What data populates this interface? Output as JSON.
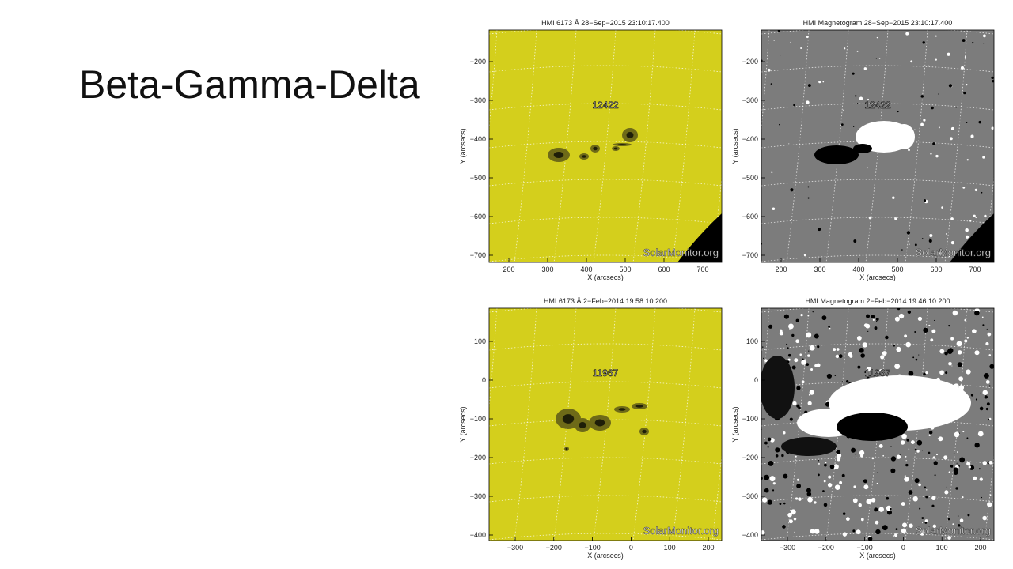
{
  "slide": {
    "title": "Beta-Gamma-Delta"
  },
  "panels": [
    {
      "title": "HMI 6173 Å  28−Sep−2015 23:10:17.400",
      "region": "12422",
      "watermark": "SolarMonitor.org",
      "x_label": "X (arcsecs)",
      "y_label": "Y (arcsecs)",
      "x_ticks": [
        "200",
        "300",
        "400",
        "500",
        "600",
        "700"
      ],
      "y_ticks": [
        "−200",
        "−300",
        "−400",
        "−500",
        "−600",
        "−700"
      ]
    },
    {
      "title": "HMI Magnetogram  28−Sep−2015 23:10:17.400",
      "region": "12422",
      "watermark": "SolarMonitor.org",
      "x_label": "X (arcsecs)",
      "y_label": "Y (arcsecs)",
      "x_ticks": [
        "200",
        "300",
        "400",
        "500",
        "600",
        "700"
      ],
      "y_ticks": [
        "−200",
        "−300",
        "−400",
        "−500",
        "−600",
        "−700"
      ]
    },
    {
      "title": "HMI 6173 Å   2−Feb−2014 19:58:10.200",
      "region": "11967",
      "watermark": "SolarMonitor.org",
      "x_label": "X (arcsecs)",
      "y_label": "Y (arcsecs)",
      "x_ticks": [
        "−300",
        "−200",
        "−100",
        "0",
        "100",
        "200"
      ],
      "y_ticks": [
        "100",
        "0",
        "−100",
        "−200",
        "−300",
        "−400"
      ]
    },
    {
      "title": "HMI Magnetogram   2−Feb−2014 19:46:10.200",
      "region": "11967",
      "watermark": "SolarMonitor.org",
      "x_label": "X (arcsecs)",
      "y_label": "Y (arcsecs)",
      "x_ticks": [
        "−300",
        "−200",
        "−100",
        "0",
        "100",
        "200"
      ],
      "y_ticks": [
        "100",
        "0",
        "−100",
        "−200",
        "−300",
        "−400"
      ]
    }
  ]
}
